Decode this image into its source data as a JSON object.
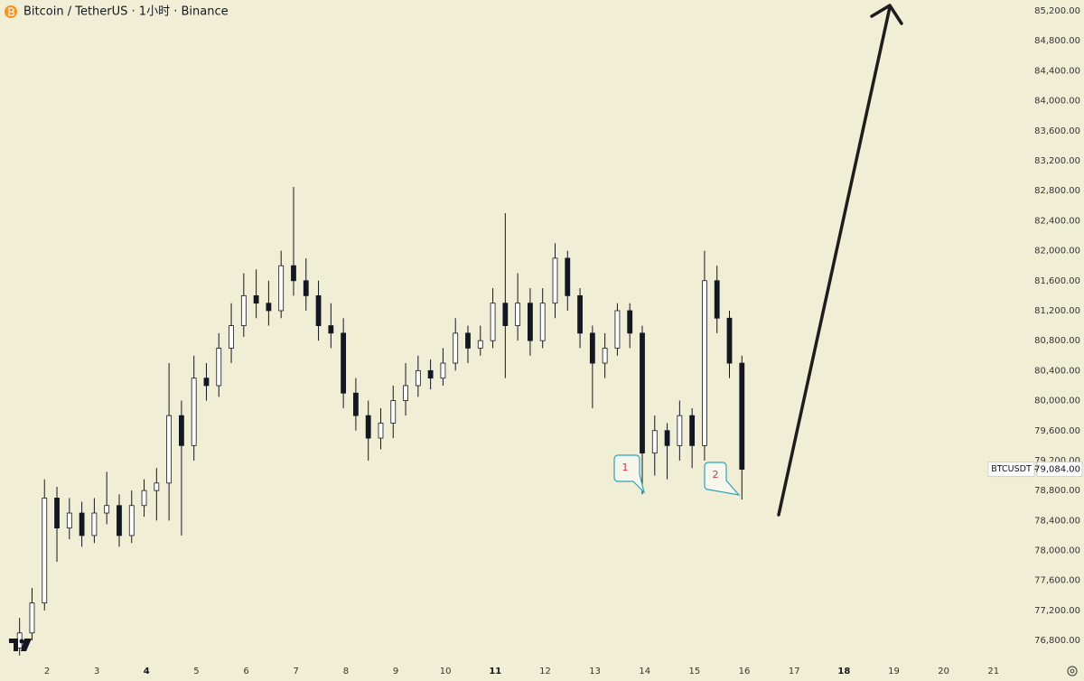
{
  "chart_data": {
    "type": "candlestick",
    "title": "Bitcoin / TetherUS · 1小时 · Binance",
    "symbol": "BTCUSDT",
    "last_price": 79084,
    "last_price_label": "79,084.00",
    "annotations": [
      {
        "text": "1"
      },
      {
        "text": "2"
      }
    ],
    "x": [
      1.45,
      1.7,
      1.95,
      2.2,
      2.45,
      2.7,
      2.95,
      3.2,
      3.45,
      3.7,
      3.95,
      4.2,
      4.45,
      4.7,
      4.95,
      5.2,
      5.45,
      5.7,
      5.95,
      6.2,
      6.45,
      6.7,
      6.95,
      7.2,
      7.45,
      7.7,
      7.95,
      8.2,
      8.45,
      8.7,
      8.95,
      9.2,
      9.45,
      9.7,
      9.95,
      10.2,
      10.45,
      10.7,
      10.95,
      11.2,
      11.45,
      11.7,
      11.95,
      12.2,
      12.45,
      12.7,
      12.95,
      13.2,
      13.45,
      13.7,
      13.95,
      14.2,
      14.45,
      14.7,
      14.95,
      15.2,
      15.45,
      15.7,
      15.95
    ],
    "open": [
      76700,
      76900,
      77300,
      78700,
      78300,
      78500,
      78200,
      78500,
      78600,
      78200,
      78600,
      78800,
      78900,
      79800,
      79400,
      80300,
      80200,
      80700,
      81000,
      81400,
      81300,
      81200,
      81800,
      81600,
      81400,
      81000,
      80900,
      80100,
      79800,
      79500,
      79700,
      80000,
      80200,
      80400,
      80300,
      80500,
      80900,
      80700,
      80800,
      81300,
      81000,
      81300,
      80800,
      81300,
      81900,
      81400,
      80900,
      80500,
      80700,
      81200,
      80900,
      79300,
      79600,
      79400,
      79800,
      79400,
      81600,
      81100,
      80500
    ],
    "high": [
      77100,
      77500,
      78950,
      78850,
      78700,
      78650,
      78700,
      79050,
      78750,
      78800,
      78950,
      79100,
      80500,
      80000,
      80600,
      80500,
      80900,
      81300,
      81700,
      81750,
      81600,
      82000,
      82850,
      81900,
      81600,
      81300,
      81100,
      80300,
      80000,
      79900,
      80200,
      80500,
      80600,
      80550,
      80700,
      81100,
      81000,
      81000,
      81500,
      82500,
      81700,
      81500,
      81500,
      82100,
      82000,
      81500,
      81000,
      80900,
      81300,
      81300,
      81000,
      79800,
      79700,
      80000,
      79900,
      82000,
      81800,
      81200,
      80600
    ],
    "low": [
      76600,
      76800,
      77200,
      77850,
      78150,
      78050,
      78100,
      78350,
      78050,
      78100,
      78450,
      78400,
      78400,
      78200,
      79200,
      80000,
      80050,
      80500,
      80850,
      81100,
      81000,
      81100,
      81400,
      81200,
      80800,
      80700,
      79900,
      79600,
      79200,
      79350,
      79500,
      79800,
      80050,
      80150,
      80200,
      80400,
      80500,
      80600,
      80700,
      80300,
      80800,
      80600,
      80700,
      81100,
      81200,
      80700,
      79900,
      80300,
      80600,
      80700,
      78750,
      79000,
      78950,
      79200,
      79100,
      79200,
      80900,
      80300,
      78680
    ],
    "close": [
      76900,
      77300,
      78700,
      78300,
      78500,
      78200,
      78500,
      78600,
      78200,
      78600,
      78800,
      78900,
      79800,
      79400,
      80300,
      80200,
      80700,
      81000,
      81400,
      81300,
      81200,
      81800,
      81600,
      81400,
      81000,
      80900,
      80100,
      79800,
      79500,
      79700,
      80000,
      80200,
      80400,
      80300,
      80500,
      80900,
      80700,
      80800,
      81300,
      81000,
      81300,
      80800,
      81300,
      81900,
      81400,
      80900,
      80500,
      80700,
      81200,
      80900,
      79300,
      79600,
      79400,
      79800,
      79400,
      81600,
      81100,
      80500,
      79084
    ],
    "up_color": "#ffffff",
    "down_color": "#131722",
    "wick_color": "#131722",
    "xlim": [
      1.057,
      21.82
    ],
    "ylim": [
      76488,
      85345
    ],
    "xticks": [
      2,
      3,
      4,
      5,
      6,
      7,
      8,
      9,
      10,
      11,
      12,
      13,
      14,
      15,
      16,
      17,
      18,
      19,
      20,
      21
    ],
    "bold_xticks": [
      4,
      11,
      18
    ],
    "yticks": [
      {
        "value": 76800,
        "label": "76,800.00"
      },
      {
        "value": 77200,
        "label": "77,200.00"
      },
      {
        "value": 77600,
        "label": "77,600.00"
      },
      {
        "value": 78000,
        "label": "78,000.00"
      },
      {
        "value": 78400,
        "label": "78,400.00"
      },
      {
        "value": 78800,
        "label": "78,800.00"
      },
      {
        "value": 79200,
        "label": "79,200.00"
      },
      {
        "value": 79600,
        "label": "79,600.00"
      },
      {
        "value": 80000,
        "label": "80,000.00"
      },
      {
        "value": 80400,
        "label": "80,400.00"
      },
      {
        "value": 80800,
        "label": "80,800.00"
      },
      {
        "value": 81200,
        "label": "81,200.00"
      },
      {
        "value": 81600,
        "label": "81,600.00"
      },
      {
        "value": 82000,
        "label": "82,000.00"
      },
      {
        "value": 82400,
        "label": "82,400.00"
      },
      {
        "value": 82800,
        "label": "82,800.00"
      },
      {
        "value": 83200,
        "label": "83,200.00"
      },
      {
        "value": 83600,
        "label": "83,600.00"
      },
      {
        "value": 84000,
        "label": "84,000.00"
      },
      {
        "value": 84400,
        "label": "84,400.00"
      },
      {
        "value": 84800,
        "label": "84,800.00"
      },
      {
        "value": 85200,
        "label": "85,200.00"
      }
    ],
    "grid": false
  }
}
